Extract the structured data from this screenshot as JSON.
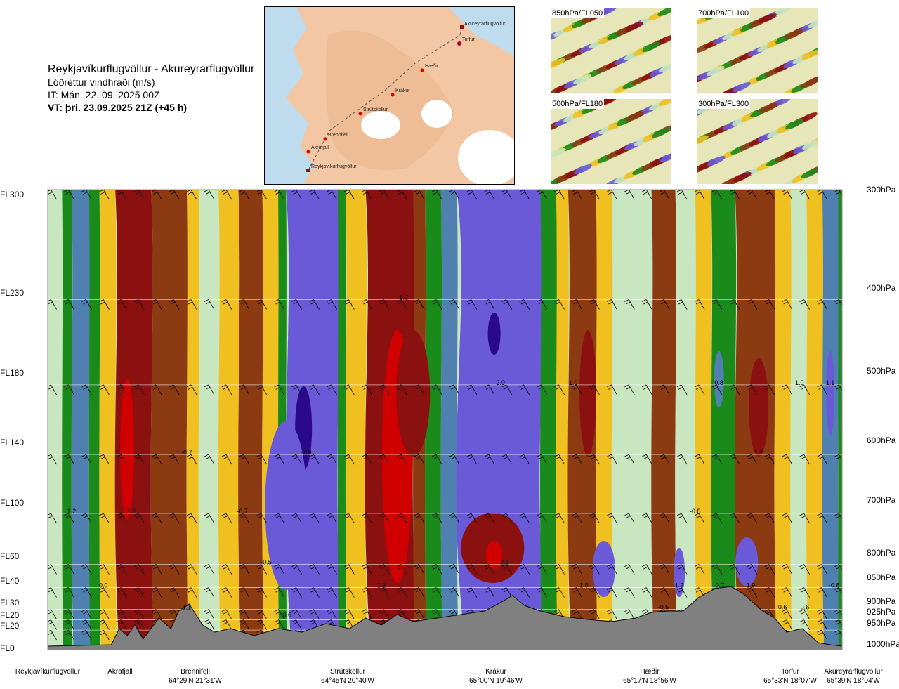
{
  "header": {
    "title": "Reykjavíkurflugvöllur - Akureyrarflugvöllur",
    "subtitle": "Lóðréttur vindhraði (m/s)",
    "init_time": "IT: Mán. 22. 09. 2025 00Z",
    "valid_time": "VT: þri. 23.09.2025 21Z (+45 h)"
  },
  "route_map": {
    "waypoints": [
      "Akureyrarflugvöllur",
      "Torfur",
      "Hæðir",
      "Krákur",
      "Strútskollur",
      "Brennifell",
      "Akrafjall",
      "Reykjavíkurflugvöllur"
    ]
  },
  "thumbnails": [
    {
      "label": "850hPa/FL050"
    },
    {
      "label": "700hPa/FL100"
    },
    {
      "label": "500hPa/FL180"
    },
    {
      "label": "300hPa/FL300"
    }
  ],
  "colors": {
    "sink_strong": "#2a0a8a",
    "sink": "#6a5ad8",
    "sink_weak": "#5080b0",
    "neutral_green": "#1a8a1a",
    "neutral_light": "#c8e6c0",
    "rise_weak": "#f0c020",
    "rise": "#8b3a12",
    "rise_strong": "#8b1010",
    "rise_max": "#d00000",
    "terrain": "#808080"
  },
  "chart_data": {
    "type": "heatmap",
    "variable": "Lóðréttur vindhraði (m/s)",
    "flight_levels": [
      "FL300",
      "FL230",
      "FL180",
      "FL140",
      "FL100",
      "FL60",
      "FL40",
      "FL30",
      "FL20",
      "FL20",
      "FL0"
    ],
    "pressure_levels": [
      "300hPa",
      "400hPa",
      "500hPa",
      "600hPa",
      "700hPa",
      "800hPa",
      "850hPa",
      "900hPa",
      "925hPa",
      "950hPa",
      "1000hPa"
    ],
    "locations": [
      {
        "name": "Reykjavíkurflugvöllur",
        "coord": ""
      },
      {
        "name": "Akrafjall",
        "coord": ""
      },
      {
        "name": "Brennifell",
        "coord": "64°29'N 21°31'W"
      },
      {
        "name": "Strútskollur",
        "coord": "64°45'N 20°40'W"
      },
      {
        "name": "Krákur",
        "coord": "65°00'N 19°46'W"
      },
      {
        "name": "Hæðir",
        "coord": "65°17'N 18°56'W"
      },
      {
        "name": "Torfur",
        "coord": "65°33'N 18°07'W"
      },
      {
        "name": "Akureyrarflugvöllur",
        "coord": "65°39'N 18°04'W"
      }
    ],
    "value_labels": [
      {
        "text": "1.2",
        "x": 0.03,
        "p": 700
      },
      {
        "text": "2.2",
        "x": 0.105,
        "p": 700
      },
      {
        "text": "-0.7",
        "x": 0.175,
        "p": 600
      },
      {
        "text": "-0.7",
        "x": 0.245,
        "p": 700
      },
      {
        "text": "0.0",
        "x": 0.07,
        "p": 850
      },
      {
        "text": "1.1",
        "x": 0.175,
        "p": 900
      },
      {
        "text": "-0.5",
        "x": 0.275,
        "p": 800
      },
      {
        "text": "-0.6",
        "x": 0.3,
        "p": 918
      },
      {
        "text": "-2.0",
        "x": 0.325,
        "p": 600
      },
      {
        "text": "1.2",
        "x": 0.42,
        "p": 850
      },
      {
        "text": "1.2",
        "x": 0.448,
        "p": 400
      },
      {
        "text": "2.9",
        "x": 0.57,
        "p": 500
      },
      {
        "text": "2.1",
        "x": 0.575,
        "p": 800
      },
      {
        "text": "-1.0",
        "x": 0.66,
        "p": 500
      },
      {
        "text": "1.0",
        "x": 0.675,
        "p": 850
      },
      {
        "text": "-0.5",
        "x": 0.775,
        "p": 900
      },
      {
        "text": "-0.8",
        "x": 0.815,
        "p": 700
      },
      {
        "text": "1.2",
        "x": 0.795,
        "p": 850
      },
      {
        "text": "0.8",
        "x": 0.845,
        "p": 500
      },
      {
        "text": "-0.7",
        "x": 0.845,
        "p": 850
      },
      {
        "text": "1.9",
        "x": 0.885,
        "p": 850
      },
      {
        "text": "1.2",
        "x": 0.895,
        "p": 600
      },
      {
        "text": "-1.0",
        "x": 0.945,
        "p": 500
      },
      {
        "text": "1.1",
        "x": 0.985,
        "p": 500
      },
      {
        "text": "0.6",
        "x": 0.925,
        "p": 900
      },
      {
        "text": "0.6",
        "x": 0.953,
        "p": 900
      },
      {
        "text": "-0.8",
        "x": 0.99,
        "p": 850
      }
    ]
  }
}
